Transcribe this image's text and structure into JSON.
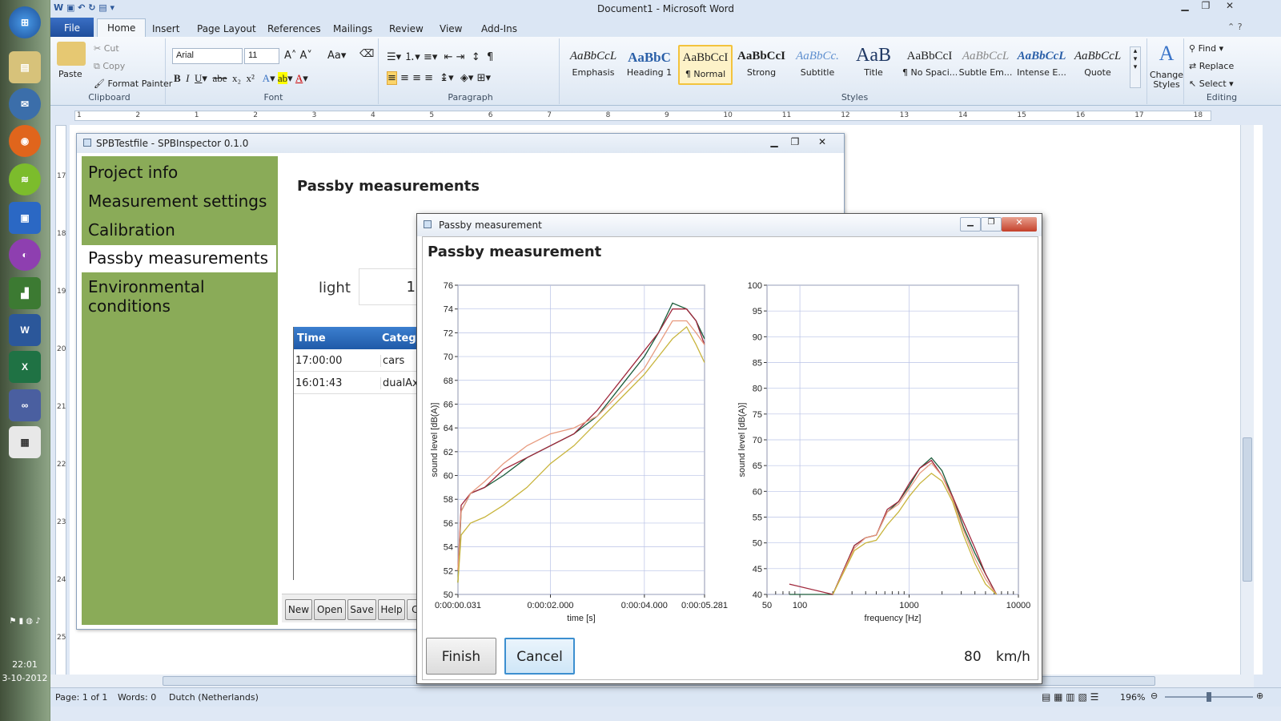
{
  "taskbar": {
    "icons": [
      "windows-orb",
      "file-manager",
      "thunderbird",
      "firefox",
      "spotify",
      "remote-desktop",
      "picasa",
      "chart-app",
      "word",
      "excel",
      "infinity-app",
      "notepad-app"
    ],
    "clock_time": "22:01",
    "clock_date": "3-10-2012"
  },
  "word": {
    "title": "Document1 - Microsoft Word",
    "tabs": [
      "File",
      "Home",
      "Insert",
      "Page Layout",
      "References",
      "Mailings",
      "Review",
      "View",
      "Add-Ins"
    ],
    "clipboard": {
      "paste": "Paste",
      "cut": "Cut",
      "copy": "Copy",
      "format_painter": "Format Painter",
      "label": "Clipboard"
    },
    "font": {
      "name": "Arial",
      "size": "11",
      "label": "Font"
    },
    "paragraph_label": "Paragraph",
    "styles": [
      {
        "preview": "AaBbCcL",
        "name": "Emphasis"
      },
      {
        "preview": "AaBbC",
        "name": "Heading 1"
      },
      {
        "preview": "AaBbCcI",
        "name": "¶ Normal"
      },
      {
        "preview": "AaBbCcI",
        "name": "Strong"
      },
      {
        "preview": "AaBbCc.",
        "name": "Subtitle"
      },
      {
        "preview": "AaB",
        "name": "Title"
      },
      {
        "preview": "AaBbCcI",
        "name": "¶ No Spaci..."
      },
      {
        "preview": "AaBbCcL",
        "name": "Subtle Em..."
      },
      {
        "preview": "AaBbCcL",
        "name": "Intense E..."
      },
      {
        "preview": "AaBbCcL",
        "name": "Quote"
      }
    ],
    "styles_label": "Styles",
    "change_styles": "Change Styles",
    "editing": {
      "find": "Find",
      "replace": "Replace",
      "select": "Select",
      "label": "Editing"
    },
    "ruler_numbers": [
      "1",
      "2",
      "1",
      "2",
      "3",
      "4",
      "5",
      "6",
      "7",
      "8",
      "9",
      "10",
      "11",
      "12",
      "13",
      "14",
      "15",
      "16",
      "17",
      "18"
    ],
    "vruler_numbers": [
      "17",
      "18",
      "19",
      "20",
      "21",
      "22",
      "23",
      "24",
      "25"
    ],
    "status": {
      "page": "Page: 1 of 1",
      "words": "Words: 0",
      "language": "Dutch (Netherlands)",
      "zoom": "196%"
    }
  },
  "app1": {
    "title": "SPBTestfile - SPBInspector 0.1.0",
    "nav": [
      "Project info",
      "Measurement settings",
      "Calibration",
      "Passby measurements",
      "Environmental conditions"
    ],
    "selected_nav": 3,
    "heading": "Passby measurements",
    "category_label": "light",
    "category_value": "1",
    "table": {
      "headers": [
        "Time",
        "Catego"
      ],
      "rows": [
        [
          "17:00:00",
          "cars"
        ],
        [
          "16:01:43",
          "dualAxl"
        ]
      ]
    },
    "buttons": [
      "New",
      "Open",
      "Save",
      "Help",
      "Cl"
    ]
  },
  "app2": {
    "title": "Passby measurement",
    "heading": "Passby measurement",
    "finish": "Finish",
    "cancel": "Cancel",
    "speed_value": "80",
    "speed_unit": "km/h"
  },
  "chart_data": [
    {
      "type": "line",
      "xlabel": "time [s]",
      "ylabel": "sound level [dB(A)]",
      "ylim": [
        50,
        76
      ],
      "yticks": [
        50,
        52,
        54,
        56,
        58,
        60,
        62,
        64,
        66,
        68,
        70,
        72,
        74,
        76
      ],
      "xtick_labels": [
        "0:00:00.031",
        "0:00:02.000",
        "0:00:04.000",
        "0:00:05.281"
      ],
      "xlim": [
        0.031,
        5.281
      ],
      "series": [
        {
          "color": "#1a5c3a",
          "x": [
            0.03,
            0.1,
            0.3,
            0.6,
            1.0,
            1.5,
            2.0,
            2.5,
            3.0,
            3.5,
            4.0,
            4.3,
            4.6,
            4.9,
            5.1,
            5.28
          ],
          "y": [
            51,
            57,
            58.5,
            59,
            60,
            61.5,
            62.5,
            63.5,
            65,
            67.5,
            70,
            72,
            74.5,
            74,
            73,
            71.5
          ]
        },
        {
          "color": "#a0283c",
          "x": [
            0.03,
            0.1,
            0.3,
            0.6,
            1.0,
            1.5,
            2.0,
            2.5,
            3.0,
            3.5,
            4.0,
            4.3,
            4.6,
            4.9,
            5.1,
            5.28
          ],
          "y": [
            52,
            57.5,
            58.5,
            59,
            60.5,
            61.5,
            62.5,
            63.5,
            65.5,
            68,
            70.5,
            72,
            74,
            74,
            73,
            71
          ]
        },
        {
          "color": "#e79a7e",
          "x": [
            0.03,
            0.1,
            0.3,
            0.6,
            1.0,
            1.5,
            2.0,
            2.5,
            3.0,
            3.5,
            4.0,
            4.3,
            4.6,
            4.9,
            5.1,
            5.28
          ],
          "y": [
            52,
            57,
            58.5,
            59.5,
            61,
            62.5,
            63.5,
            64,
            65,
            67,
            69,
            71,
            73,
            73,
            72,
            71
          ]
        },
        {
          "color": "#c8b43c",
          "x": [
            0.03,
            0.1,
            0.3,
            0.6,
            1.0,
            1.5,
            2.0,
            2.5,
            3.0,
            3.5,
            4.0,
            4.3,
            4.6,
            4.9,
            5.1,
            5.28
          ],
          "y": [
            51,
            55,
            56,
            56.5,
            57.5,
            59,
            61,
            62.5,
            64.5,
            66.5,
            68.5,
            70,
            71.5,
            72.5,
            71,
            69.5
          ]
        }
      ]
    },
    {
      "type": "line",
      "xlabel": "frequency [Hz]",
      "ylabel": "sound level [dB(A)]",
      "ylim": [
        40,
        100
      ],
      "yticks": [
        40,
        45,
        50,
        55,
        60,
        65,
        70,
        75,
        80,
        85,
        90,
        95,
        100
      ],
      "xscale": "log",
      "xlim": [
        50,
        10000
      ],
      "xtick_labels": [
        "50",
        "100",
        "1000",
        "10000"
      ],
      "xticks": [
        50,
        100,
        1000,
        10000
      ],
      "series": [
        {
          "color": "#1a5c3a",
          "x": [
            80,
            200,
            315,
            400,
            500,
            630,
            800,
            1000,
            1250,
            1600,
            2000,
            2500,
            3150,
            4000,
            5000,
            6300
          ],
          "y": [
            40,
            40,
            49.5,
            51,
            51.5,
            56,
            58,
            61,
            64.5,
            66.5,
            64,
            59,
            53,
            48,
            44,
            40
          ]
        },
        {
          "color": "#a0283c",
          "x": [
            80,
            200,
            315,
            400,
            500,
            630,
            800,
            1000,
            1250,
            1600,
            2000,
            2500,
            3150,
            4000,
            5000,
            6300
          ],
          "y": [
            42,
            40,
            49.5,
            51,
            51.5,
            56.5,
            58,
            61.5,
            64.5,
            66,
            63,
            59,
            54,
            49,
            44,
            40
          ]
        },
        {
          "color": "#e79a7e",
          "x": [
            200,
            315,
            400,
            500,
            630,
            800,
            1000,
            1250,
            1600,
            2000,
            2500,
            3150,
            4000,
            5000,
            6300
          ],
          "y": [
            40,
            49,
            51,
            51.5,
            56,
            57.5,
            60.5,
            63.5,
            65.5,
            63,
            58.5,
            52.5,
            47,
            43,
            40
          ]
        },
        {
          "color": "#c8b43c",
          "x": [
            200,
            315,
            400,
            500,
            630,
            800,
            1000,
            1250,
            1600,
            2000,
            2500,
            3150,
            4000,
            5000,
            6300
          ],
          "y": [
            40,
            48.5,
            50,
            50.5,
            53.5,
            56,
            59,
            61.5,
            63.5,
            62,
            58,
            51.5,
            46,
            42,
            40
          ]
        }
      ]
    }
  ]
}
